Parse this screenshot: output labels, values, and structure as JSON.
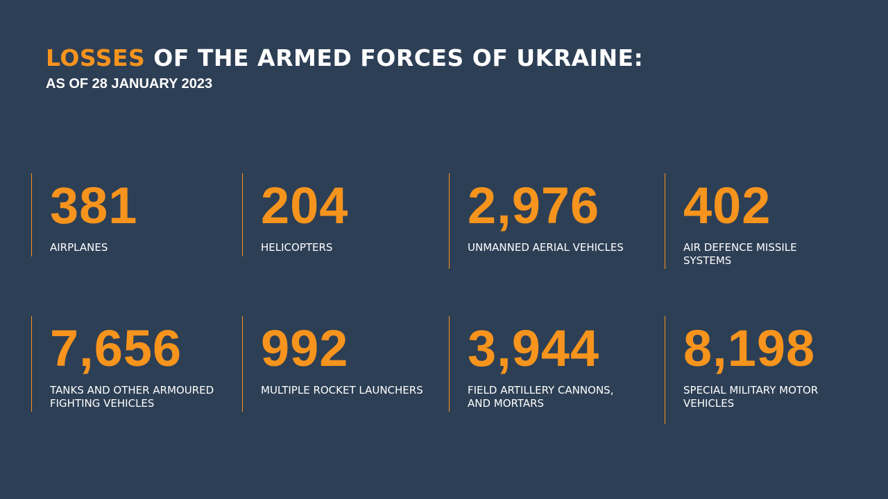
{
  "header": {
    "title_highlight": "LOSSES",
    "title_rest": "OF THE ARMED FORCES OF UKRAINE:",
    "subtitle": "AS OF 28 JANUARY 2023"
  },
  "items": [
    {
      "number": "381",
      "label_lines": [
        "AIRPLANES"
      ]
    },
    {
      "number": "204",
      "label_lines": [
        "HELICOPTERS"
      ]
    },
    {
      "number": "2,976",
      "label_lines": [
        "UNMANNED AERIAL VEHICLES"
      ]
    },
    {
      "number": "402",
      "label_lines": [
        "AIR DEFENCE MISSILE",
        "SYSTEMS"
      ]
    },
    {
      "number": "7,656",
      "label_lines": [
        "TANKS AND OTHER ARMOURED",
        "FIGHTING VEHICLES"
      ]
    },
    {
      "number": "992",
      "label_lines": [
        "MULTIPLE ROCKET LAUNCHERS"
      ]
    },
    {
      "number": "3,944",
      "label_lines": [
        "FIELD ARTILLERY CANNONS,",
        "AND MORTARS"
      ]
    },
    {
      "number": "8,198",
      "label_lines": [
        "SPECIAL MILITARY MOTOR",
        "VEHICLES"
      ]
    }
  ]
}
